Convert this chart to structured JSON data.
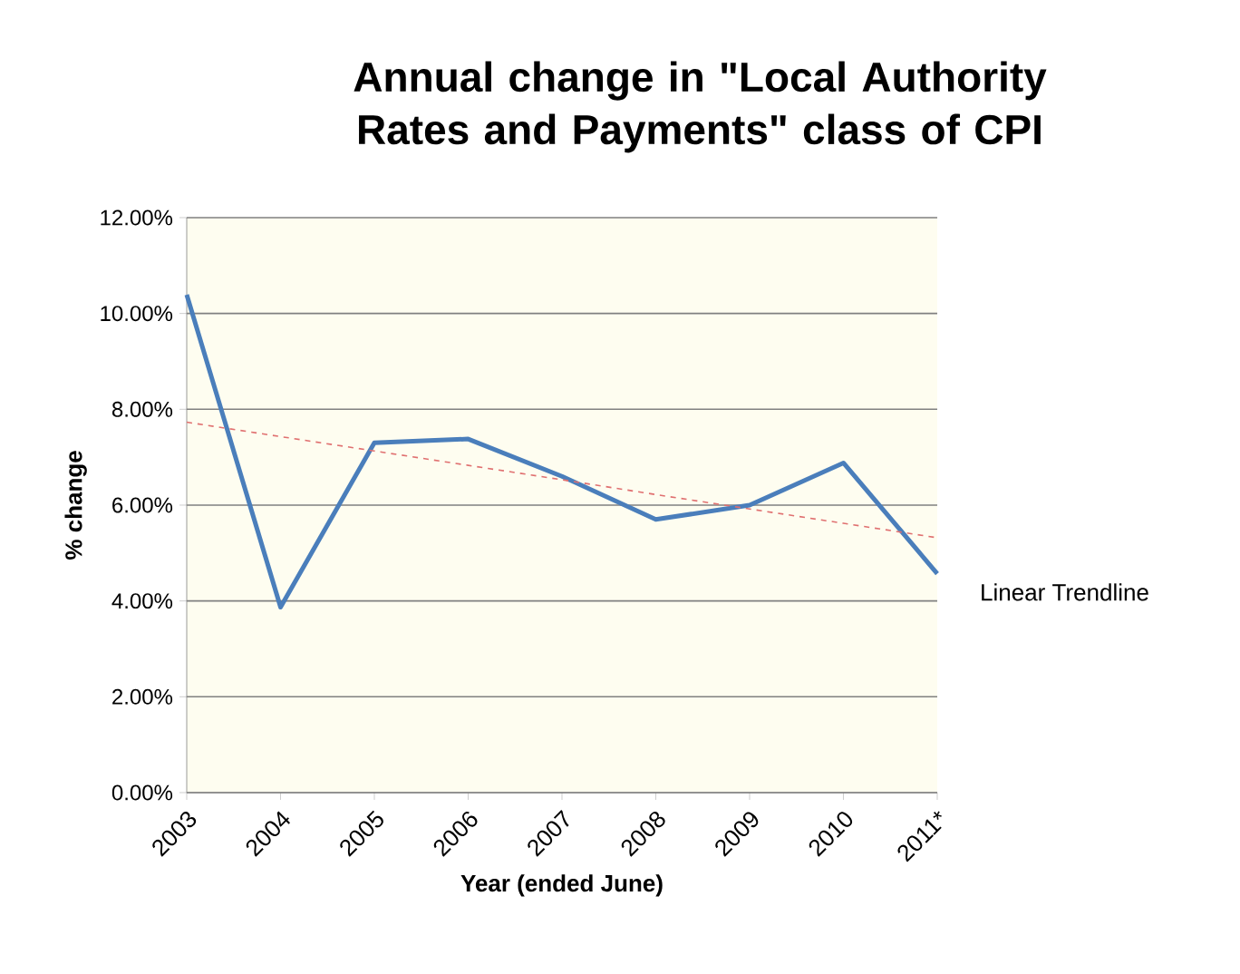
{
  "chart_data": {
    "type": "line",
    "title": "Annual change in \"Local Authority Rates and Payments\" class of CPI",
    "xlabel": "Year (ended June)",
    "ylabel": "% change",
    "categories": [
      "2003",
      "2004",
      "2005",
      "2006",
      "2007",
      "2008",
      "2009",
      "2010",
      "2011*"
    ],
    "series": [
      {
        "color": "#4a7ebb",
        "values": [
          10.39,
          3.87,
          7.3,
          7.38,
          6.6,
          5.7,
          6.0,
          6.88,
          4.57
        ],
        "line_style": "solid"
      },
      {
        "name": "Linear Trendline",
        "color": "#e07070",
        "values": [
          7.73,
          7.43,
          7.13,
          6.83,
          6.53,
          6.22,
          5.92,
          5.62,
          5.32
        ],
        "line_style": "dashed"
      }
    ],
    "ylim": [
      0,
      12
    ],
    "yticks": [
      {
        "value": 0,
        "label": "0.00%"
      },
      {
        "value": 2,
        "label": "2.00%"
      },
      {
        "value": 4,
        "label": "4.00%"
      },
      {
        "value": 6,
        "label": "6.00%"
      },
      {
        "value": 8,
        "label": "8.00%"
      },
      {
        "value": 10,
        "label": "10.00%"
      },
      {
        "value": 12,
        "label": "12.00%"
      }
    ],
    "grid": "y",
    "legend": false,
    "marker": "none"
  }
}
